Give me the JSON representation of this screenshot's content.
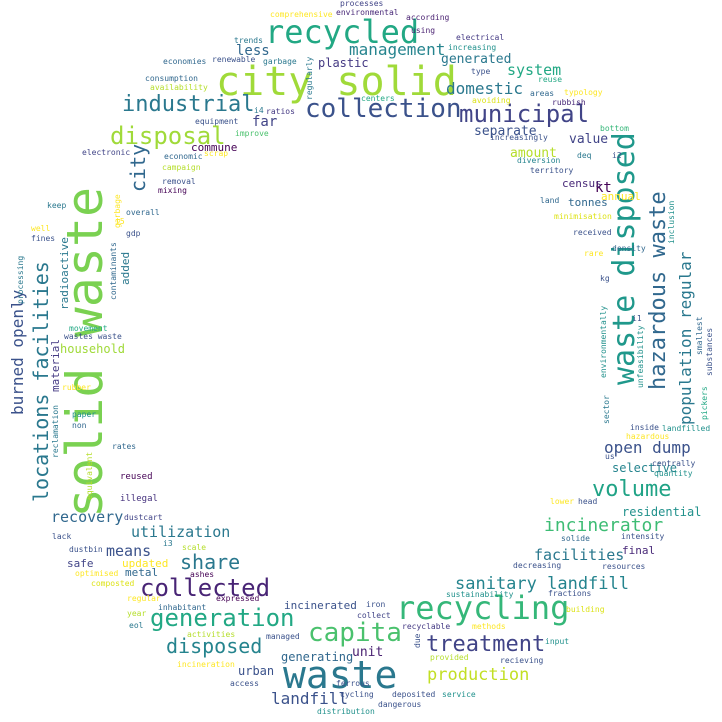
{
  "words": [
    {
      "text": "solid waste",
      "color": "#7ad151"
    },
    {
      "text": "city solid",
      "color": "#a0da39"
    },
    {
      "text": "waste",
      "color": "#2a788e"
    },
    {
      "text": "recycled",
      "color": "#22a884"
    },
    {
      "text": "waste disposed",
      "color": "#1f988b"
    },
    {
      "text": "recycling",
      "color": "#35b779"
    },
    {
      "text": "hazardous waste",
      "color": "#31688e"
    },
    {
      "text": "collection",
      "color": "#3b528b"
    },
    {
      "text": "municipal",
      "color": "#414487"
    },
    {
      "text": "capita",
      "color": "#4ac16d"
    },
    {
      "text": "disposal",
      "color": "#a0da39"
    },
    {
      "text": "generation",
      "color": "#22a884"
    },
    {
      "text": "locations facilities",
      "color": "#2a788e"
    },
    {
      "text": "collected",
      "color": "#482475"
    },
    {
      "text": "industrial",
      "color": "#2a788e"
    },
    {
      "text": "volume",
      "color": "#20a386"
    },
    {
      "text": "treatment",
      "color": "#414487"
    },
    {
      "text": "disposed",
      "color": "#25848e"
    },
    {
      "text": "share",
      "color": "#2a788e"
    },
    {
      "text": "city",
      "color": "#31688e"
    },
    {
      "text": "management",
      "color": "#25848e"
    },
    {
      "text": "incinerator",
      "color": "#3dbc74"
    },
    {
      "text": "population regular",
      "color": "#2a788e"
    },
    {
      "text": "sanitary landfill",
      "color": "#25848e"
    },
    {
      "text": "burned openly",
      "color": "#3b528b"
    },
    {
      "text": "production",
      "color": "#c2df23"
    },
    {
      "text": "domestic",
      "color": "#2a788e"
    },
    {
      "text": "system",
      "color": "#22a884"
    },
    {
      "text": "open dump",
      "color": "#3b528b"
    },
    {
      "text": "utilization",
      "color": "#2a788e"
    },
    {
      "text": "means",
      "color": "#3b528b"
    },
    {
      "text": "recovery",
      "color": "#31688e"
    },
    {
      "text": "facilities",
      "color": "#2a788e"
    },
    {
      "text": "landfill",
      "color": "#3b528b"
    },
    {
      "text": "generated",
      "color": "#2a788e"
    },
    {
      "text": "less",
      "color": "#31688e"
    },
    {
      "text": "far",
      "color": "#414487"
    },
    {
      "text": "plastic",
      "color": "#443983"
    },
    {
      "text": "value",
      "color": "#414487"
    },
    {
      "text": "separate",
      "color": "#3b528b"
    },
    {
      "text": "amount",
      "color": "#b5de2b"
    },
    {
      "text": "tonnes",
      "color": "#31688e"
    },
    {
      "text": "kt",
      "color": "#440154"
    },
    {
      "text": "census",
      "color": "#482878"
    },
    {
      "text": "annual",
      "color": "#fde725"
    },
    {
      "text": "selective",
      "color": "#25848e"
    },
    {
      "text": "residential",
      "color": "#21918c"
    },
    {
      "text": "household",
      "color": "#a0da39"
    },
    {
      "text": "material",
      "color": "#443983"
    },
    {
      "text": "radioactive",
      "color": "#2a788e"
    },
    {
      "text": "added",
      "color": "#2a788e"
    },
    {
      "text": "unit",
      "color": "#481f70"
    },
    {
      "text": "generating",
      "color": "#31688e"
    },
    {
      "text": "incinerated",
      "color": "#3b528b"
    },
    {
      "text": "urban",
      "color": "#3b528b"
    },
    {
      "text": "final",
      "color": "#482878"
    },
    {
      "text": "commune",
      "color": "#440154"
    },
    {
      "text": "updated",
      "color": "#fde725"
    },
    {
      "text": "safe",
      "color": "#414487"
    },
    {
      "text": "metal",
      "color": "#31688e"
    },
    {
      "text": "reused",
      "color": "#440154"
    },
    {
      "text": "illegal",
      "color": "#46327e"
    },
    {
      "text": "comprehensive",
      "color": "#fde725"
    },
    {
      "text": "environmental",
      "color": "#482878"
    },
    {
      "text": "according",
      "color": "#481f70"
    },
    {
      "text": "processes",
      "color": "#414487"
    },
    {
      "text": "using",
      "color": "#481f70"
    },
    {
      "text": "electrical",
      "color": "#443983"
    },
    {
      "text": "increasing",
      "color": "#21918c"
    },
    {
      "text": "trends",
      "color": "#2a788e"
    },
    {
      "text": "garbage",
      "color": "#2a788e"
    },
    {
      "text": "renewable",
      "color": "#3b528b"
    },
    {
      "text": "economies",
      "color": "#31688e"
    },
    {
      "text": "regularly",
      "color": "#2a788e"
    },
    {
      "text": "type",
      "color": "#3b528b"
    },
    {
      "text": "reuse",
      "color": "#22a884"
    },
    {
      "text": "consumption",
      "color": "#31688e"
    },
    {
      "text": "availability",
      "color": "#b5de2b"
    },
    {
      "text": "areas",
      "color": "#31688e"
    },
    {
      "text": "typology",
      "color": "#fde725"
    },
    {
      "text": "centers",
      "color": "#22a884"
    },
    {
      "text": "avoiding",
      "color": "#dde318"
    },
    {
      "text": "rubbish",
      "color": "#482878"
    },
    {
      "text": "ratios",
      "color": "#443983"
    },
    {
      "text": "i4",
      "color": "#2a788e"
    },
    {
      "text": "equipment",
      "color": "#3b528b"
    },
    {
      "text": "improve",
      "color": "#4ac16d"
    },
    {
      "text": "increasingly",
      "color": "#3b528b"
    },
    {
      "text": "bottom",
      "color": "#35b779"
    },
    {
      "text": "electronic",
      "color": "#414487"
    },
    {
      "text": "economic",
      "color": "#31688e"
    },
    {
      "text": "scrap",
      "color": "#fde725"
    },
    {
      "text": "deq",
      "color": "#2a788e"
    },
    {
      "text": "i2",
      "color": "#3b528b"
    },
    {
      "text": "diversion",
      "color": "#25848e"
    },
    {
      "text": "campaign",
      "color": "#b5de2b"
    },
    {
      "text": "territory",
      "color": "#3b528b"
    },
    {
      "text": "removal",
      "color": "#3b528b"
    },
    {
      "text": "mixing",
      "color": "#440154"
    },
    {
      "text": "garbage",
      "color": "#fde725"
    },
    {
      "text": "overall",
      "color": "#31688e"
    },
    {
      "text": "keep",
      "color": "#2a788e"
    },
    {
      "text": "land",
      "color": "#31688e"
    },
    {
      "text": "minimisation",
      "color": "#dde318"
    },
    {
      "text": "inclusion",
      "color": "#21918c"
    },
    {
      "text": "well",
      "color": "#fde725"
    },
    {
      "text": "fines",
      "color": "#3b528b"
    },
    {
      "text": "i5",
      "color": "#fde725"
    },
    {
      "text": "gdp",
      "color": "#3b528b"
    },
    {
      "text": "received",
      "color": "#3b528b"
    },
    {
      "text": "density",
      "color": "#31688e"
    },
    {
      "text": "rare",
      "color": "#fde725"
    },
    {
      "text": "processing",
      "color": "#2a788e"
    },
    {
      "text": "contaminants",
      "color": "#31688e"
    },
    {
      "text": "kg",
      "color": "#3b528b"
    },
    {
      "text": "environmentally",
      "color": "#21918c"
    },
    {
      "text": "i1",
      "color": "#3b528b"
    },
    {
      "text": "smallest",
      "color": "#31688e"
    },
    {
      "text": "substances",
      "color": "#3b528b"
    },
    {
      "text": "movement",
      "color": "#22a884"
    },
    {
      "text": "wastes waste",
      "color": "#3b528b"
    },
    {
      "text": "unfeasibility",
      "color": "#21918c"
    },
    {
      "text": "pickers",
      "color": "#22a884"
    },
    {
      "text": "landfilled",
      "color": "#21918c"
    },
    {
      "text": "rubber",
      "color": "#fde725"
    },
    {
      "text": "paper",
      "color": "#21918c"
    },
    {
      "text": "reclamation",
      "color": "#2a788e"
    },
    {
      "text": "non",
      "color": "#31688e"
    },
    {
      "text": "sector",
      "color": "#2a788e"
    },
    {
      "text": "inside",
      "color": "#3b528b"
    },
    {
      "text": "hazardous",
      "color": "#fde725"
    },
    {
      "text": "us",
      "color": "#3b528b"
    },
    {
      "text": "centrally",
      "color": "#3b528b"
    },
    {
      "text": "rates",
      "color": "#31688e"
    },
    {
      "text": "equivalent",
      "color": "#b5de2b"
    },
    {
      "text": "quantity",
      "color": "#21918c"
    },
    {
      "text": "intensity",
      "color": "#3b528b"
    },
    {
      "text": "dustcart",
      "color": "#414487"
    },
    {
      "text": "lower",
      "color": "#fde725"
    },
    {
      "text": "head",
      "color": "#3b528b"
    },
    {
      "text": "solide",
      "color": "#31688e"
    },
    {
      "text": "lack",
      "color": "#3b528b"
    },
    {
      "text": "dustbin",
      "color": "#3b528b"
    },
    {
      "text": "scale",
      "color": "#b5de2b"
    },
    {
      "text": "i3",
      "color": "#2a788e"
    },
    {
      "text": "optimised",
      "color": "#fde725"
    },
    {
      "text": "ashes",
      "color": "#440154"
    },
    {
      "text": "composted",
      "color": "#dde318"
    },
    {
      "text": "decreasing",
      "color": "#3b528b"
    },
    {
      "text": "resources",
      "color": "#3b528b"
    },
    {
      "text": "regular",
      "color": "#fde725"
    },
    {
      "text": "expressed",
      "color": "#440154"
    },
    {
      "text": "inhabitant",
      "color": "#31688e"
    },
    {
      "text": "iron",
      "color": "#3b528b"
    },
    {
      "text": "collect",
      "color": "#414487"
    },
    {
      "text": "fractions",
      "color": "#3b528b"
    },
    {
      "text": "sustainability",
      "color": "#21918c"
    },
    {
      "text": "building",
      "color": "#dde318"
    },
    {
      "text": "year",
      "color": "#b5de2b"
    },
    {
      "text": "eol",
      "color": "#2a788e"
    },
    {
      "text": "activities",
      "color": "#b5de2b"
    },
    {
      "text": "managed",
      "color": "#3b528b"
    },
    {
      "text": "recyclable",
      "color": "#443983"
    },
    {
      "text": "methods",
      "color": "#fde725"
    },
    {
      "text": "input",
      "color": "#21918c"
    },
    {
      "text": "due",
      "color": "#3b528b"
    },
    {
      "text": "provided",
      "color": "#b5de2b"
    },
    {
      "text": "recieving",
      "color": "#3b528b"
    },
    {
      "text": "incineration",
      "color": "#fde725"
    },
    {
      "text": "access",
      "color": "#3b528b"
    },
    {
      "text": "ferrous",
      "color": "#3b528b"
    },
    {
      "text": "cycling",
      "color": "#3b528b"
    },
    {
      "text": "deposited",
      "color": "#3b528b"
    },
    {
      "text": "service",
      "color": "#21918c"
    },
    {
      "text": "distribution",
      "color": "#21918c"
    },
    {
      "text": "dangerous",
      "color": "#3b528b"
    }
  ]
}
